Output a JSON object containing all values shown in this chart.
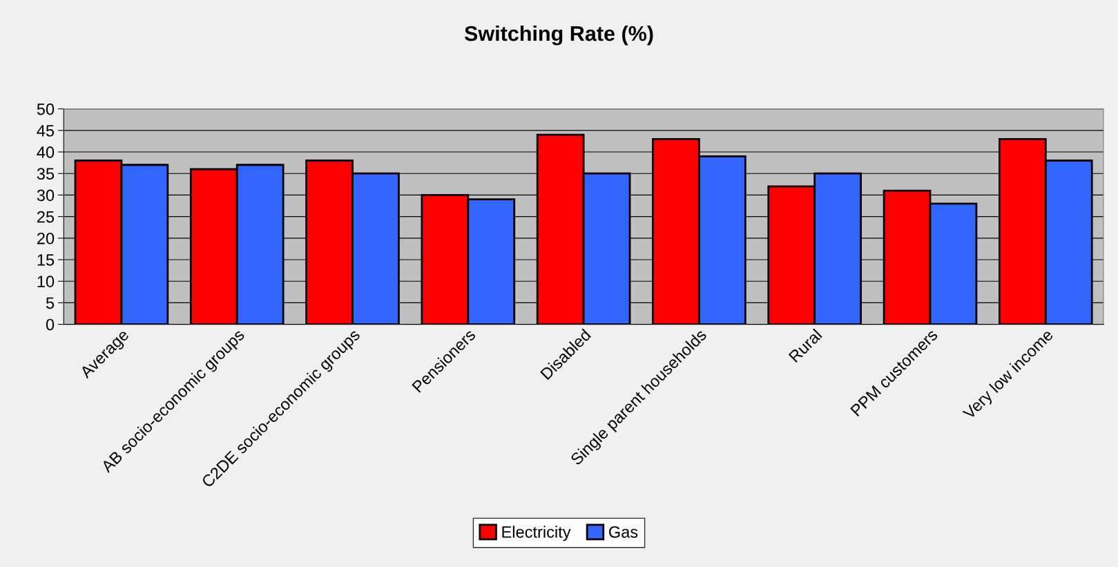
{
  "chart_data": {
    "type": "bar",
    "title": "Switching Rate (%)",
    "categories": [
      "Average",
      "AB socio-economic groups",
      "C2DE socio-economic groups",
      "Pensioners",
      "Disabled",
      "Single parent households",
      "Rural",
      "PPM customers",
      "Very low income"
    ],
    "series": [
      {
        "name": "Electricity",
        "color": "#ff0000",
        "values": [
          38,
          36,
          38,
          30,
          44,
          43,
          32,
          31,
          43
        ]
      },
      {
        "name": "Gas",
        "color": "#3366ff",
        "values": [
          37,
          37,
          35,
          29,
          35,
          39,
          35,
          28,
          38
        ]
      }
    ],
    "ylim": [
      0,
      50
    ],
    "yticks": [
      0,
      5,
      10,
      15,
      20,
      25,
      30,
      35,
      40,
      45,
      50
    ],
    "grid": "y",
    "legend": "bottom"
  }
}
